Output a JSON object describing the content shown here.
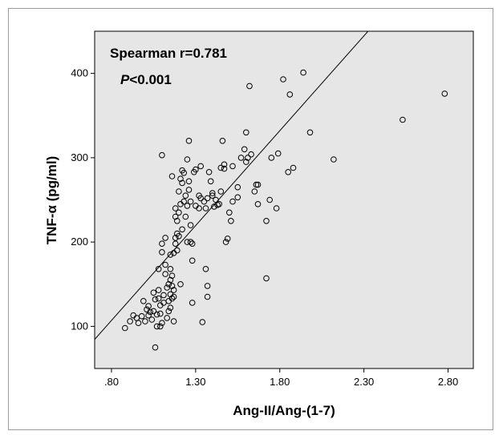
{
  "chart_data": {
    "type": "scatter",
    "xlabel": "Ang-II/Ang-(1-7)",
    "ylabel": "TNF-α (pg/ml)",
    "xlim": [
      0.7,
      2.95
    ],
    "ylim": [
      50,
      450
    ],
    "x_ticks": [
      0.8,
      1.3,
      1.8,
      2.3,
      2.8
    ],
    "x_tick_labels": [
      ".80",
      "1.30",
      "1.80",
      "2.30",
      "2.80"
    ],
    "y_ticks": [
      100,
      200,
      300,
      400
    ],
    "y_tick_labels": [
      "100",
      "200",
      "300",
      "400"
    ],
    "annotation": {
      "line1": "Spearman r=0.781",
      "line2_italic": "P",
      "line2_rest": "<0.001"
    },
    "fit_line": {
      "slope": 225,
      "intercept": -73
    },
    "grid": false,
    "plot_background": "#e6e6e6",
    "marker": "open-circle",
    "points": [
      [
        0.88,
        98
      ],
      [
        0.91,
        106
      ],
      [
        0.93,
        113
      ],
      [
        0.95,
        110
      ],
      [
        0.96,
        104
      ],
      [
        0.98,
        112
      ],
      [
        0.99,
        130
      ],
      [
        1.0,
        106
      ],
      [
        1.01,
        120
      ],
      [
        1.02,
        124
      ],
      [
        1.02,
        113
      ],
      [
        1.03,
        117
      ],
      [
        1.04,
        108
      ],
      [
        1.05,
        118
      ],
      [
        1.05,
        140
      ],
      [
        1.06,
        132
      ],
      [
        1.06,
        75
      ],
      [
        1.07,
        100
      ],
      [
        1.07,
        114
      ],
      [
        1.08,
        168
      ],
      [
        1.08,
        143
      ],
      [
        1.08,
        133
      ],
      [
        1.09,
        100
      ],
      [
        1.09,
        115
      ],
      [
        1.09,
        125
      ],
      [
        1.1,
        188
      ],
      [
        1.1,
        198
      ],
      [
        1.1,
        104
      ],
      [
        1.1,
        303
      ],
      [
        1.11,
        128
      ],
      [
        1.11,
        137
      ],
      [
        1.12,
        162
      ],
      [
        1.12,
        173
      ],
      [
        1.12,
        205
      ],
      [
        1.13,
        110
      ],
      [
        1.13,
        146
      ],
      [
        1.14,
        150
      ],
      [
        1.14,
        130
      ],
      [
        1.14,
        118
      ],
      [
        1.15,
        155
      ],
      [
        1.15,
        168
      ],
      [
        1.15,
        185
      ],
      [
        1.15,
        138
      ],
      [
        1.15,
        122
      ],
      [
        1.16,
        148
      ],
      [
        1.16,
        160
      ],
      [
        1.16,
        133
      ],
      [
        1.16,
        278
      ],
      [
        1.17,
        187
      ],
      [
        1.17,
        135
      ],
      [
        1.17,
        143
      ],
      [
        1.17,
        106
      ],
      [
        1.18,
        205
      ],
      [
        1.18,
        198
      ],
      [
        1.18,
        230
      ],
      [
        1.18,
        240
      ],
      [
        1.19,
        210
      ],
      [
        1.19,
        225
      ],
      [
        1.19,
        190
      ],
      [
        1.2,
        235
      ],
      [
        1.2,
        207
      ],
      [
        1.2,
        260
      ],
      [
        1.21,
        275
      ],
      [
        1.21,
        245
      ],
      [
        1.21,
        150
      ],
      [
        1.22,
        270
      ],
      [
        1.22,
        285
      ],
      [
        1.22,
        215
      ],
      [
        1.23,
        282
      ],
      [
        1.23,
        248
      ],
      [
        1.24,
        255
      ],
      [
        1.24,
        230
      ],
      [
        1.25,
        200
      ],
      [
        1.25,
        243
      ],
      [
        1.25,
        298
      ],
      [
        1.26,
        320
      ],
      [
        1.26,
        272
      ],
      [
        1.26,
        262
      ],
      [
        1.27,
        220
      ],
      [
        1.27,
        248
      ],
      [
        1.27,
        200
      ],
      [
        1.28,
        198
      ],
      [
        1.28,
        178
      ],
      [
        1.28,
        128
      ],
      [
        1.29,
        283
      ],
      [
        1.3,
        243
      ],
      [
        1.3,
        286
      ],
      [
        1.32,
        255
      ],
      [
        1.32,
        240
      ],
      [
        1.33,
        252
      ],
      [
        1.33,
        290
      ],
      [
        1.34,
        105
      ],
      [
        1.35,
        248
      ],
      [
        1.36,
        240
      ],
      [
        1.36,
        168
      ],
      [
        1.37,
        252
      ],
      [
        1.37,
        148
      ],
      [
        1.37,
        135
      ],
      [
        1.38,
        283
      ],
      [
        1.39,
        272
      ],
      [
        1.4,
        255
      ],
      [
        1.4,
        258
      ],
      [
        1.41,
        242
      ],
      [
        1.42,
        250
      ],
      [
        1.43,
        244
      ],
      [
        1.44,
        245
      ],
      [
        1.45,
        260
      ],
      [
        1.45,
        288
      ],
      [
        1.46,
        320
      ],
      [
        1.47,
        292
      ],
      [
        1.47,
        287
      ],
      [
        1.48,
        200
      ],
      [
        1.49,
        204
      ],
      [
        1.5,
        235
      ],
      [
        1.51,
        225
      ],
      [
        1.52,
        248
      ],
      [
        1.52,
        290
      ],
      [
        1.55,
        265
      ],
      [
        1.55,
        253
      ],
      [
        1.57,
        300
      ],
      [
        1.59,
        310
      ],
      [
        1.6,
        330
      ],
      [
        1.6,
        295
      ],
      [
        1.61,
        300
      ],
      [
        1.62,
        385
      ],
      [
        1.63,
        304
      ],
      [
        1.65,
        260
      ],
      [
        1.66,
        268
      ],
      [
        1.67,
        245
      ],
      [
        1.67,
        268
      ],
      [
        1.72,
        157
      ],
      [
        1.72,
        225
      ],
      [
        1.74,
        250
      ],
      [
        1.75,
        300
      ],
      [
        1.78,
        240
      ],
      [
        1.79,
        305
      ],
      [
        1.82,
        393
      ],
      [
        1.85,
        283
      ],
      [
        1.86,
        375
      ],
      [
        1.88,
        288
      ],
      [
        1.94,
        401
      ],
      [
        1.98,
        330
      ],
      [
        2.12,
        298
      ],
      [
        2.53,
        345
      ],
      [
        2.78,
        376
      ]
    ]
  }
}
